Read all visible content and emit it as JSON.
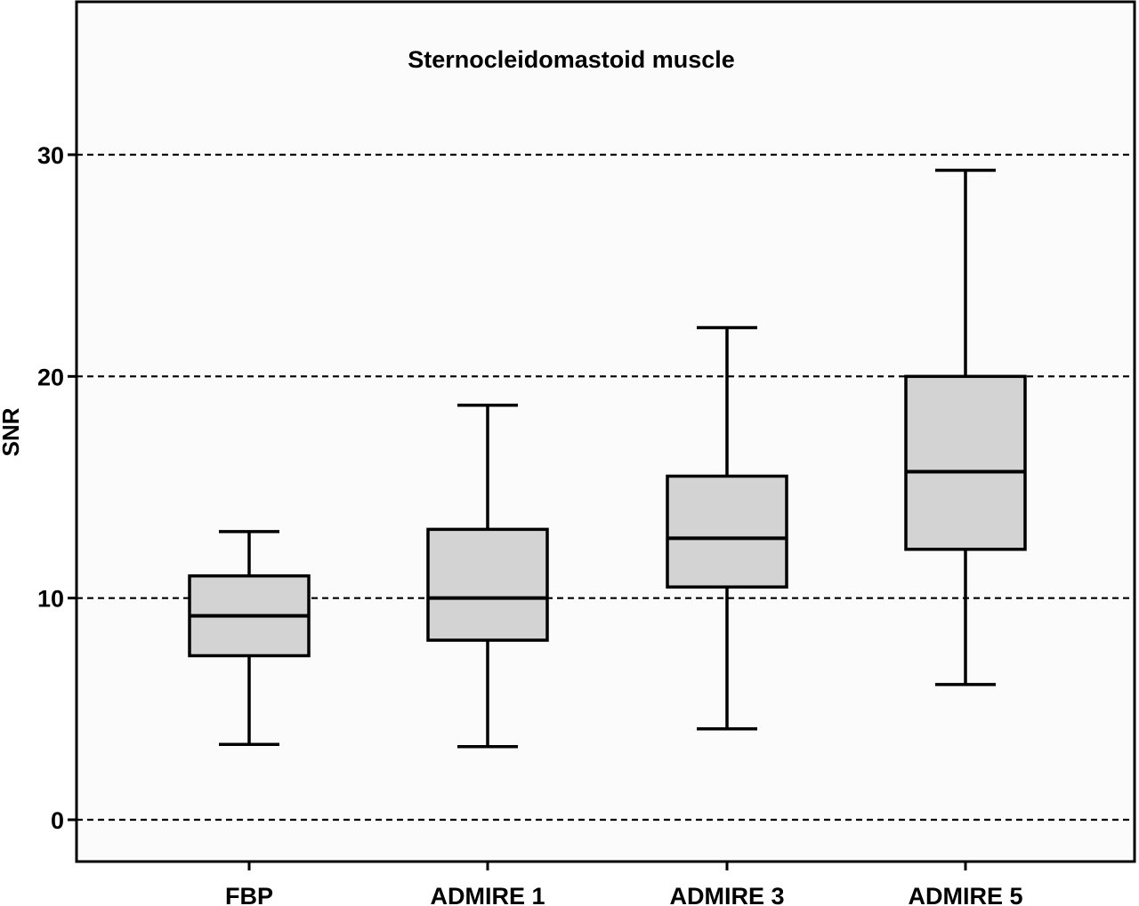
{
  "chart_data": {
    "type": "box",
    "title": "Sternocleidomastoid muscle",
    "xlabel": "",
    "ylabel": "SNR",
    "ylim": [
      -1.9,
      36.9
    ],
    "yticks": [
      "0",
      "10",
      "20",
      "30"
    ],
    "grid": "horizontal dashed at y-ticks",
    "categories": [
      "FBP",
      "ADMIRE 1",
      "ADMIRE 3",
      "ADMIRE 5"
    ],
    "boxes": [
      {
        "category": "FBP",
        "min": 3.4,
        "q1": 7.4,
        "median": 9.2,
        "q3": 11.0,
        "max": 13.0
      },
      {
        "category": "ADMIRE 1",
        "min": 3.3,
        "q1": 8.1,
        "median": 10.0,
        "q3": 13.1,
        "max": 18.7
      },
      {
        "category": "ADMIRE 3",
        "min": 4.1,
        "q1": 10.5,
        "median": 12.7,
        "q3": 15.5,
        "max": 22.2
      },
      {
        "category": "ADMIRE 5",
        "min": 6.1,
        "q1": 12.2,
        "median": 15.7,
        "q3": 20.0,
        "max": 29.3
      }
    ],
    "colors": {
      "box_fill": "#d3d3d3",
      "stroke": "#000000",
      "plot_background": "#fbfbfb"
    }
  }
}
